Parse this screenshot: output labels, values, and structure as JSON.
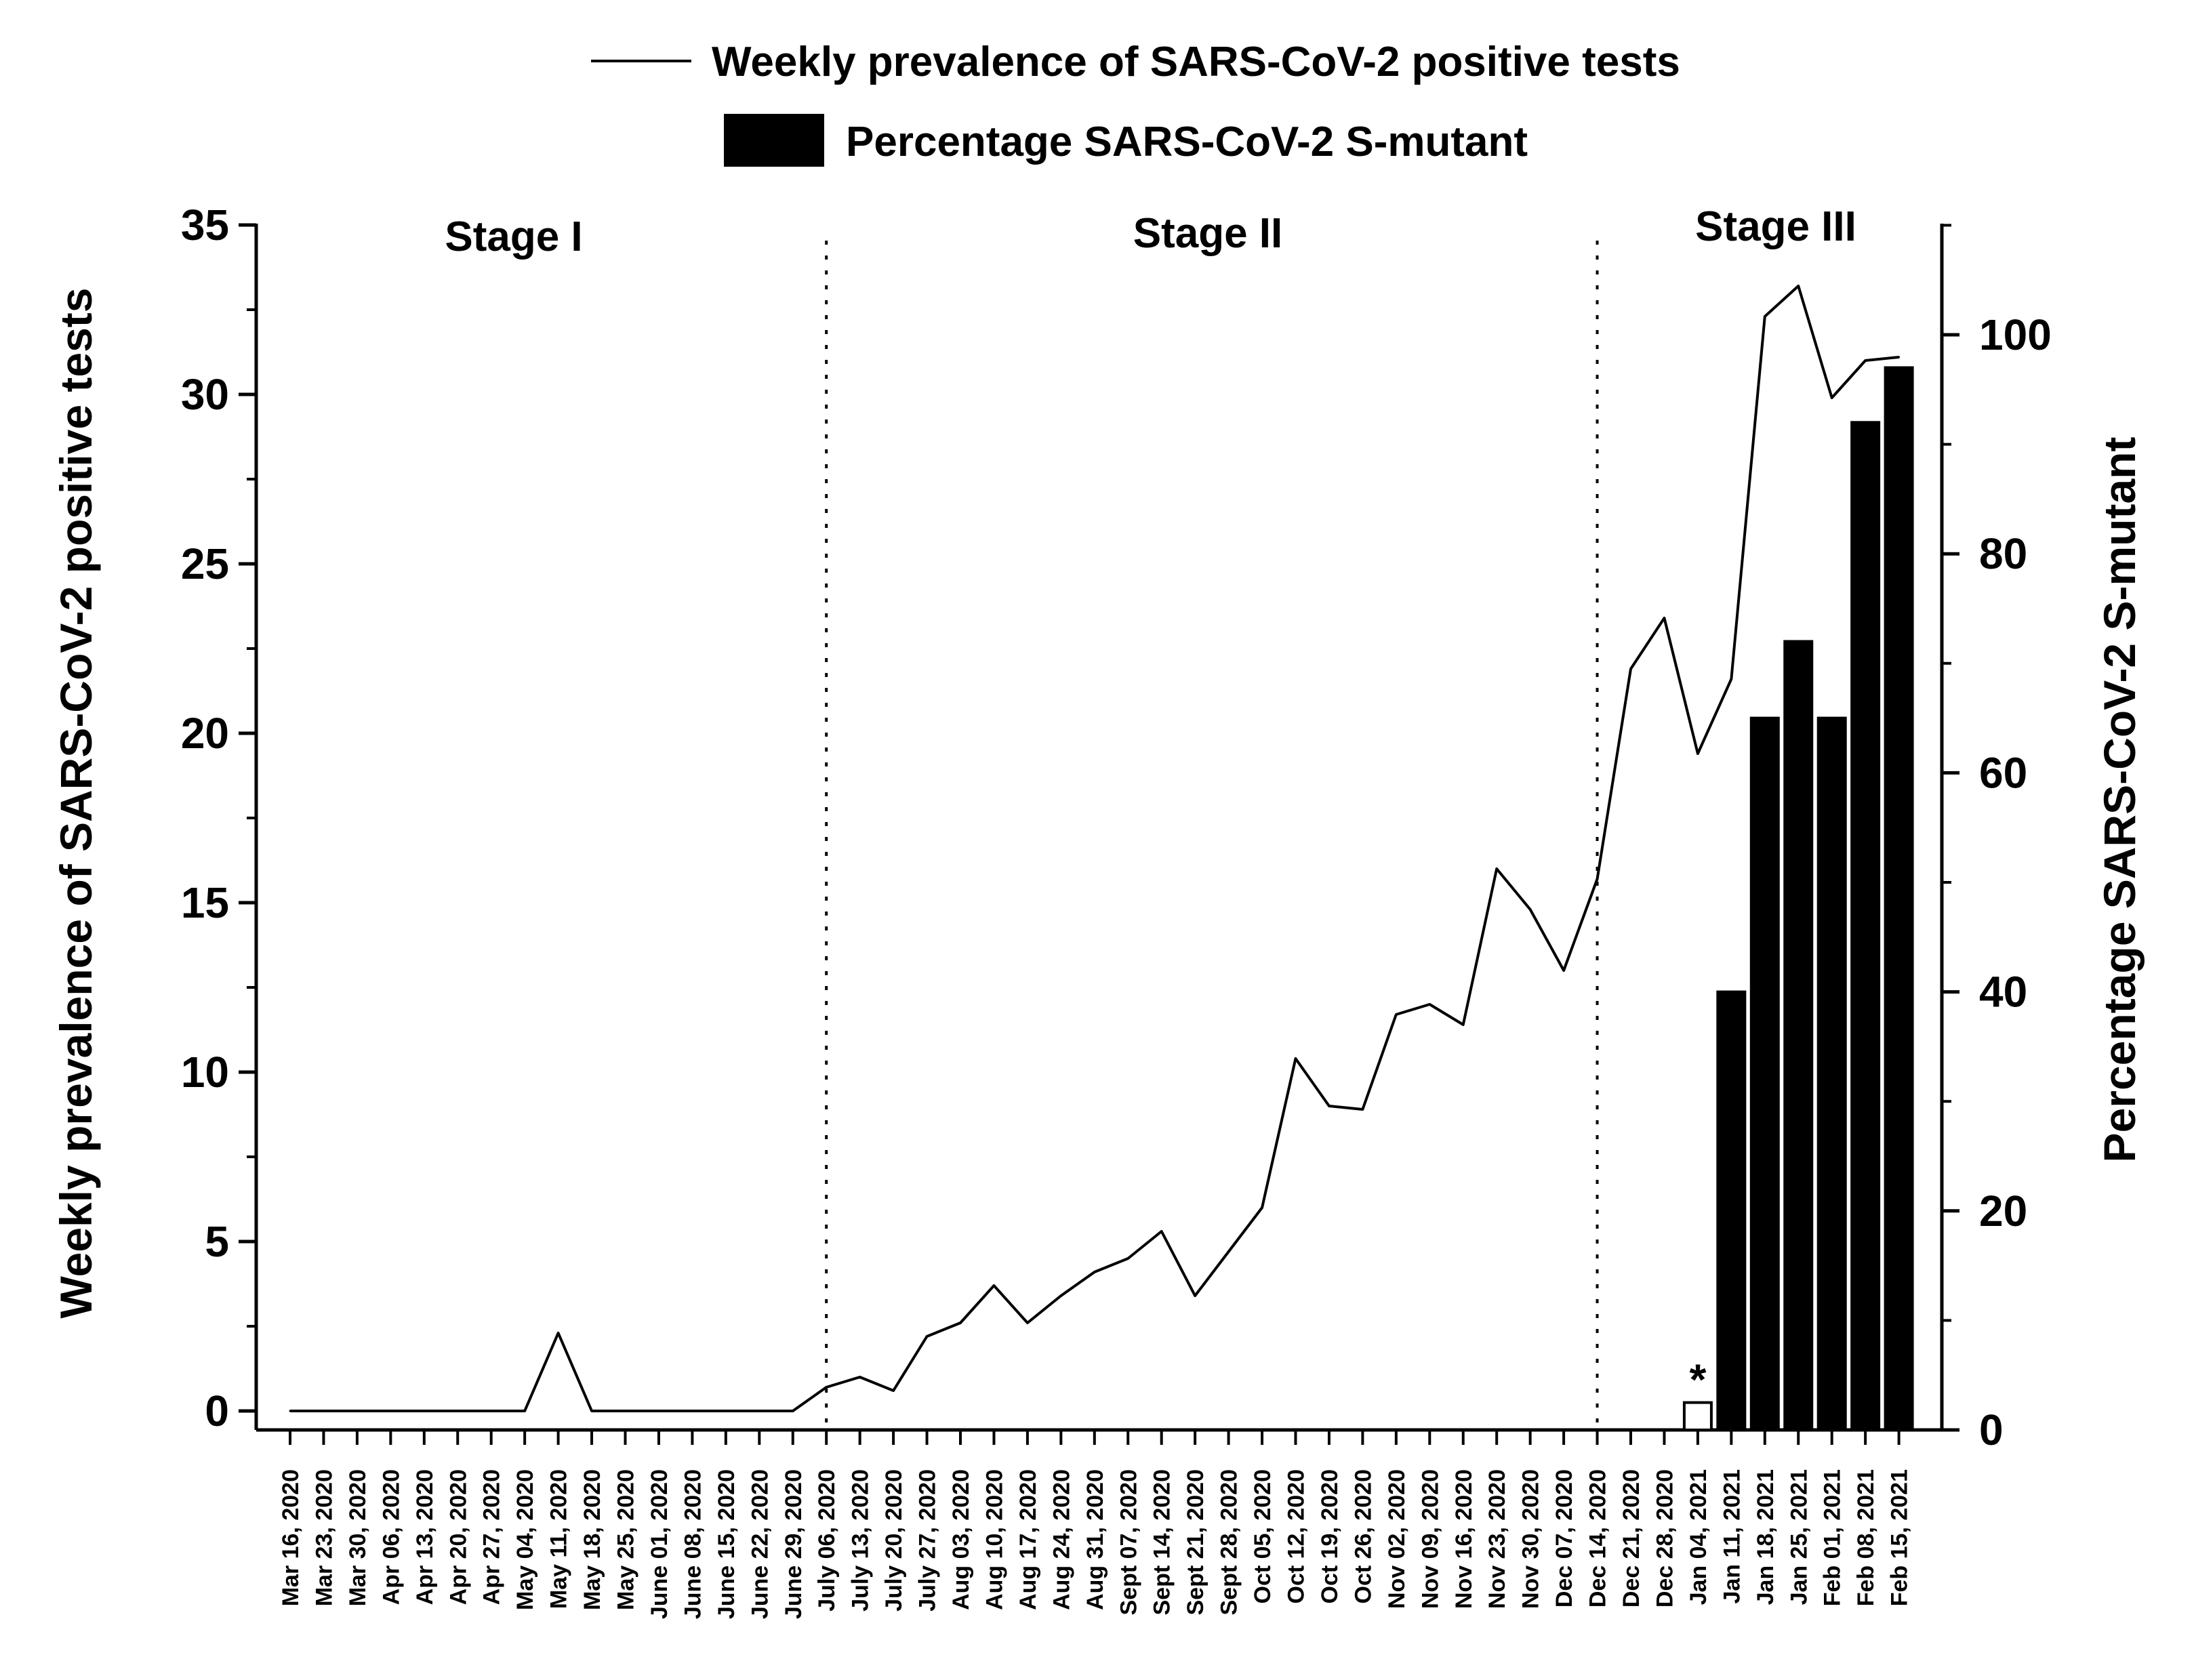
{
  "chart_data": {
    "type": "line+bar",
    "legend": [
      {
        "kind": "line",
        "label": "Weekly prevalence of SARS-CoV-2 positive tests"
      },
      {
        "kind": "bar",
        "label": "Percentage SARS-CoV-2 S-mutant"
      }
    ],
    "left_axis": {
      "label": "Weekly prevalence of SARS-CoV-2 positive tests",
      "range": [
        0,
        35
      ],
      "ticks": [
        0,
        5,
        10,
        15,
        20,
        25,
        30,
        35
      ],
      "tick_labels": [
        "0",
        "5",
        "10",
        "15",
        "20",
        "25",
        "30",
        "35"
      ]
    },
    "right_axis": {
      "label": "Percentage SARS-CoV-2 S-mutant",
      "range": [
        0,
        110
      ],
      "ticks": [
        0,
        20,
        40,
        60,
        80,
        100
      ],
      "tick_labels": [
        "0",
        "20",
        "40",
        "60",
        "80",
        "100"
      ]
    },
    "categories": [
      "Mar 16, 2020",
      "Mar 23, 2020",
      "Mar 30, 2020",
      "Apr 06, 2020",
      "Apr 13, 2020",
      "Apr 20, 2020",
      "Apr 27, 2020",
      "May 04, 2020",
      "May 11, 2020",
      "May 18, 2020",
      "May 25, 2020",
      "June 01, 2020",
      "June 08, 2020",
      "June 15, 2020",
      "June 22, 2020",
      "June 29, 2020",
      "July 06, 2020",
      "July 13, 2020",
      "July 20, 2020",
      "July 27, 2020",
      "Aug 03, 2020",
      "Aug 10, 2020",
      "Aug 17, 2020",
      "Aug 24, 2020",
      "Aug 31, 2020",
      "Sept 07, 2020",
      "Sept 14, 2020",
      "Sept 21, 2020",
      "Sept 28, 2020",
      "Oct 05, 2020",
      "Oct 12, 2020",
      "Oct 19, 2020",
      "Oct 26, 2020",
      "Nov 02, 2020",
      "Nov 09, 2020",
      "Nov 16, 2020",
      "Nov 23, 2020",
      "Nov 30, 2020",
      "Dec 07, 2020",
      "Dec 14, 2020",
      "Dec 21, 2020",
      "Dec 28, 2020",
      "Jan 04, 2021",
      "Jan 11, 2021",
      "Jan 18, 2021",
      "Jan 25, 2021",
      "Feb 01, 2021",
      "Feb 08, 2021",
      "Feb 15, 2021"
    ],
    "line_series": {
      "name": "Weekly prevalence of SARS-CoV-2 positive tests",
      "values": [
        0,
        0,
        0,
        0,
        0,
        0,
        0,
        0,
        2.3,
        0,
        0,
        0,
        0,
        0,
        0,
        0,
        0.7,
        1.0,
        0.6,
        2.2,
        2.6,
        3.7,
        2.6,
        3.4,
        4.1,
        4.5,
        5.3,
        3.4,
        4.7,
        6.0,
        10.4,
        9.0,
        8.9,
        11.7,
        12.0,
        11.4,
        16.0,
        14.8,
        13.0,
        15.7,
        21.9,
        23.4,
        19.4,
        21.6,
        32.3,
        33.2,
        29.9,
        31.0,
        31.1
      ]
    },
    "bar_series": {
      "name": "Percentage SARS-CoV-2 S-mutant",
      "values": [
        null,
        null,
        null,
        null,
        null,
        null,
        null,
        null,
        null,
        null,
        null,
        null,
        null,
        null,
        null,
        null,
        null,
        null,
        null,
        null,
        null,
        null,
        null,
        null,
        null,
        null,
        null,
        null,
        null,
        null,
        null,
        null,
        null,
        null,
        null,
        null,
        null,
        null,
        null,
        null,
        null,
        null,
        2.5,
        40,
        65,
        72,
        65,
        92,
        97
      ],
      "open_bars": [
        42
      ]
    },
    "stages": [
      {
        "label": "Stage I",
        "from": 0,
        "to": 15
      },
      {
        "label": "Stage II",
        "from": 16,
        "to": 38
      },
      {
        "label": "Stage III",
        "from": 39,
        "to": 48
      }
    ],
    "stage_boundaries": [
      16,
      39
    ],
    "annotations": [
      {
        "text": "*",
        "category": "Jan 04, 2021"
      }
    ]
  }
}
